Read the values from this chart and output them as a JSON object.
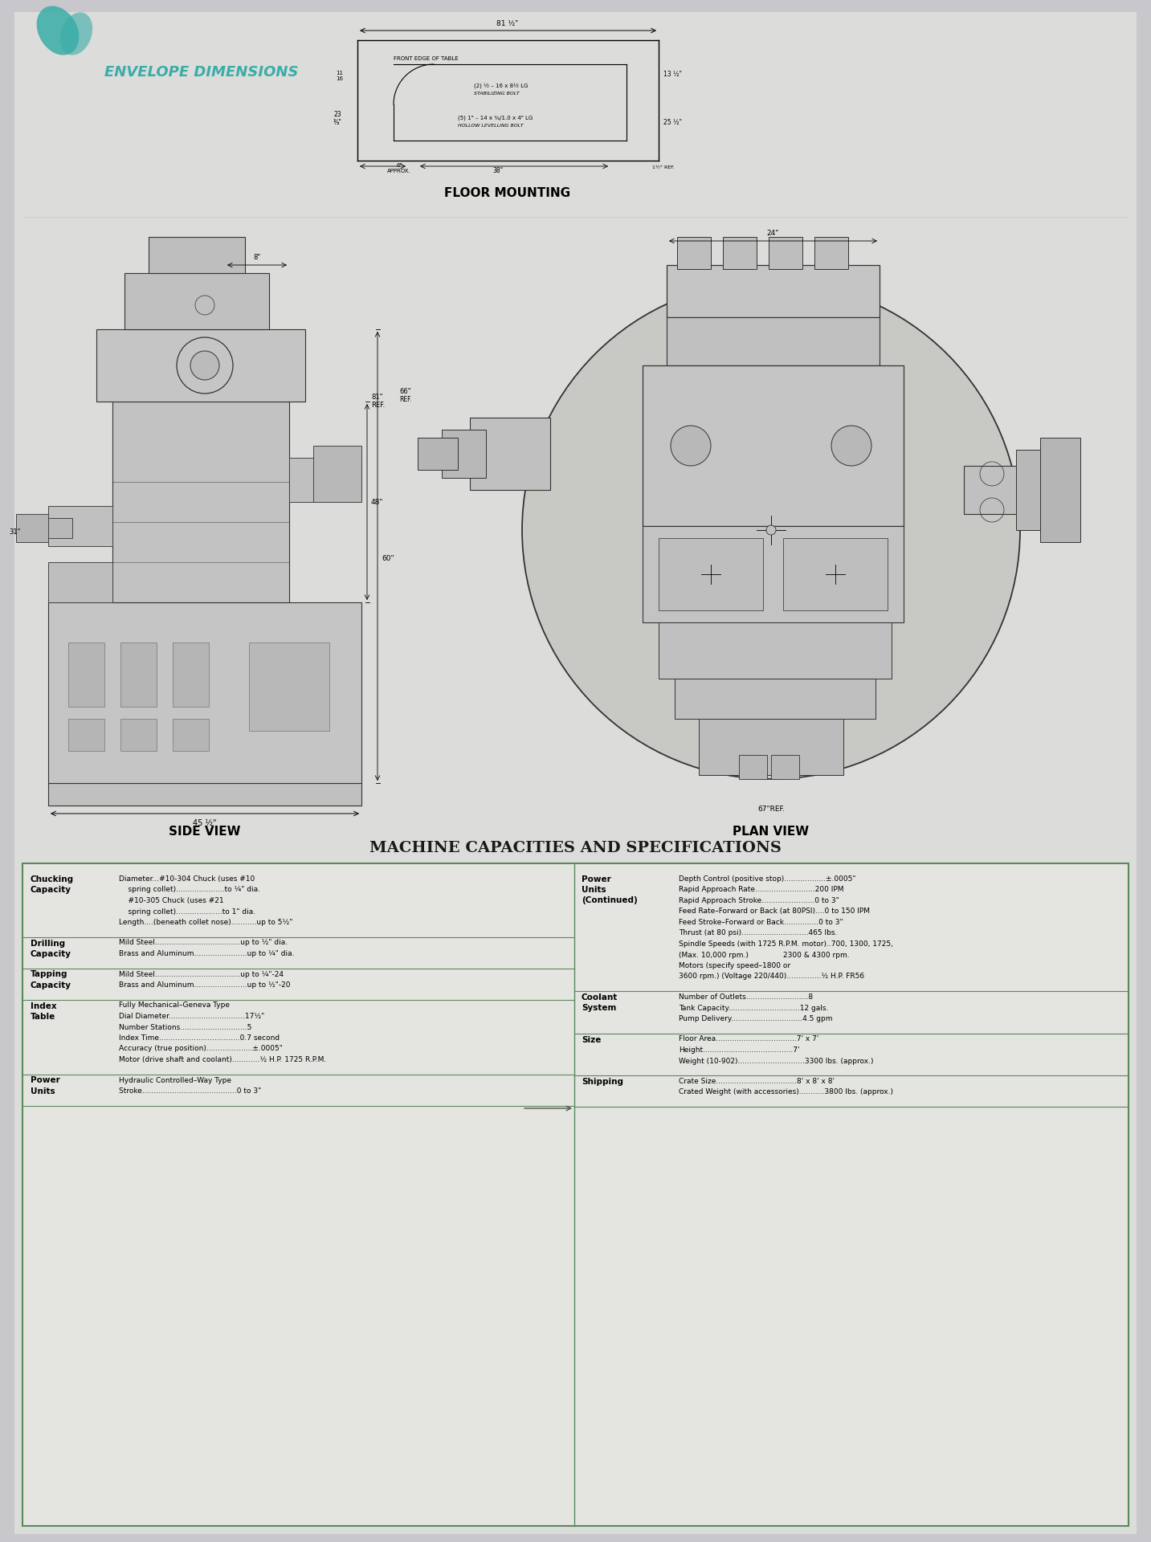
{
  "bg_color": "#c8c8cc",
  "page_color": "#dcdcda",
  "title_envelope": "ENVELOPE DIMENSIONS",
  "title_envelope_color": "#3aada8",
  "title_floor": "FLOOR MOUNTING",
  "title_side": "SIDE VIEW",
  "title_plan": "PLAN VIEW",
  "title_specs": "MACHINE CAPACITIES AND SPECIFICATIONS",
  "specs_title_color": "#1a1a1a",
  "specs_border_color": "#5a8a5a",
  "specs_bg": "#e4e4e0",
  "specs_left": [
    {
      "category": "Chucking\nCapacity",
      "lines": [
        "Diameter...#10-304 Chuck (uses #10",
        "    spring collet).....................to ¼\" dia.",
        "    #10-305 Chuck (uses #21",
        "    spring collet)....................to 1\" dia.",
        "Length....(beneath collet nose)...........up to 5½\""
      ]
    },
    {
      "category": "Drilling\nCapacity",
      "lines": [
        "Mild Steel.....................................up to ½\" dia.",
        "Brass and Aluminum.......................up to ¼\" dia."
      ]
    },
    {
      "category": "Tapping\nCapacity",
      "lines": [
        "Mild Steel.....................................up to ¼\"-24",
        "Brass and Aluminum.......................up to ½\"-20"
      ]
    },
    {
      "category": "Index\nTable",
      "lines": [
        "Fully Mechanical–Geneva Type",
        "Dial Diameter.................................17½\"",
        "Number Stations.............................5",
        "Index Time...................................0.7 second",
        "Accuracy (true position)....................±.0005\"",
        "Motor (drive shaft and coolant)............½ H.P. 1725 R.P.M."
      ]
    },
    {
      "category": "Power\nUnits",
      "lines": [
        "Hydraulic Controlled–Way Type",
        "Stroke.........................................0 to 3\""
      ]
    }
  ],
  "specs_right": [
    {
      "category": "Power\nUnits\n(Continued)",
      "lines": [
        "Depth Control (positive stop)..................±.0005\"",
        "Rapid Approach Rate..........................200 IPM",
        "Rapid Approach Stroke.......................0 to 3\"",
        "Feed Rate–Forward or Back (at 80PSI)....0 to 150 IPM",
        "Feed Stroke–Forward or Back...............0 to 3\"",
        "Thrust (at 80 psi).............................465 lbs.",
        "Spindle Speeds (with 1725 R.P.M. motor)..700, 1300, 1725,",
        "(Max. 10,000 rpm.)               2300 & 4300 rpm.",
        "Motors (specify speed–1800 or",
        "3600 rpm.) (Voltage 220/440)...............½ H.P. FR56"
      ]
    },
    {
      "category": "Coolant\nSystem",
      "lines": [
        "Number of Outlets...........................8",
        "Tank Capacity...............................12 gals.",
        "Pump Delivery...............................4.5 gpm"
      ]
    },
    {
      "category": "Size",
      "lines": [
        "Floor Area...................................7' x 7'",
        "Height.......................................7'",
        "Weight (10-902).............................3300 lbs. (approx.)"
      ]
    },
    {
      "category": "Shipping",
      "lines": [
        "Crate Size...................................8' x 8' x 8'",
        "Crated Weight (with accessories)...........3800 lbs. (approx.)"
      ]
    }
  ]
}
